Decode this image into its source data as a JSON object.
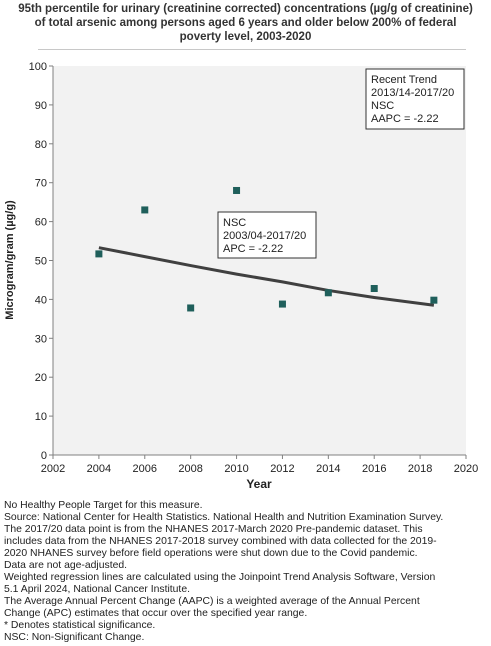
{
  "chart_data": {
    "type": "scatter",
    "title_lines": [
      "95th percentile for urinary (creatinine corrected) concentrations (µg/g of creatinine)",
      "of total arsenic among persons aged 6 years and older below 200% of federal",
      "poverty level, 2003-2020"
    ],
    "xlabel": "Year",
    "ylabel": "Microgram/gram (µg/g)",
    "xlim": [
      2002,
      2020
    ],
    "ylim": [
      0,
      100
    ],
    "xticks": [
      2002,
      2004,
      2006,
      2008,
      2010,
      2012,
      2014,
      2016,
      2018,
      2020
    ],
    "yticks": [
      0,
      10,
      20,
      30,
      40,
      50,
      60,
      70,
      80,
      90,
      100
    ],
    "grid": false,
    "points": [
      {
        "x": 2004,
        "y": 51.7
      },
      {
        "x": 2006,
        "y": 63
      },
      {
        "x": 2008,
        "y": 37.8
      },
      {
        "x": 2010,
        "y": 68
      },
      {
        "x": 2012,
        "y": 38.8
      },
      {
        "x": 2014,
        "y": 41.7
      },
      {
        "x": 2016,
        "y": 42.8
      },
      {
        "x": 2018.6,
        "y": 39.8
      }
    ],
    "trend_line": [
      {
        "x": 2004,
        "y": 53.3
      },
      {
        "x": 2006,
        "y": 51
      },
      {
        "x": 2008,
        "y": 48.7
      },
      {
        "x": 2010,
        "y": 46.5
      },
      {
        "x": 2012,
        "y": 44.5
      },
      {
        "x": 2014,
        "y": 42.3
      },
      {
        "x": 2016,
        "y": 40.5
      },
      {
        "x": 2018.6,
        "y": 38.5
      }
    ],
    "annotations": [
      {
        "lines": [
          "Recent Trend",
          "2013/14-2017/20",
          "NSC",
          "AAPC = -2.22"
        ]
      },
      {
        "lines": [
          "NSC",
          "2003/04-2017/20",
          "APC = -2.22"
        ]
      }
    ],
    "colors": {
      "marker": "#1f5f5b",
      "trend": "#404040",
      "plot_bg": "#f2f2f2",
      "axis": "#808080"
    }
  },
  "footnotes": [
    "No Healthy People Target for this measure.",
    "Source: National Center for Health Statistics. National Health and Nutrition Examination Survey.",
    "The 2017/20 data point is from the NHANES 2017-March 2020 Pre-pandemic dataset. This",
    "includes data from the NHANES 2017-2018 survey combined with data collected for the 2019-",
    "2020 NHANES survey before field operations were shut down due to the Covid pandemic.",
    "Data are not age-adjusted.",
    "Weighted regression lines are calculated using the Joinpoint Trend Analysis Software, Version",
    "5.1 April 2024, National Cancer Institute.",
    "The Average Annual Percent Change (AAPC) is a weighted average of the Annual Percent",
    "Change (APC) estimates that occur over the specified year range.",
    "* Denotes statistical significance.",
    "NSC: Non-Significant Change."
  ]
}
